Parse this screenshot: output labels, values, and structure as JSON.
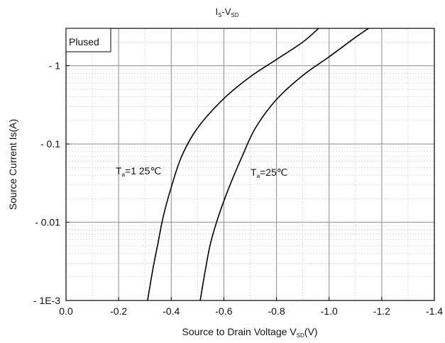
{
  "chart_data": {
    "type": "line",
    "title": {
      "main": "I",
      "sub1": "S",
      "mid": "-V",
      "sub2": "SD"
    },
    "xlabel": {
      "main": "Source to Drain Voltage V",
      "sub": "SD",
      "tail": "(V)"
    },
    "ylabel": "Source Current Is(A)",
    "x_ticks": [
      "0.0",
      "-0.2",
      "-0.4",
      "-0.6",
      "-0.8",
      "-1.0",
      "-1.2",
      "-1.4"
    ],
    "y_ticks": [
      "- 1E-3",
      "- 0.01",
      "- 0.1",
      "- 1"
    ],
    "xlim": [
      0,
      -1.4
    ],
    "ylim": [
      0.001,
      3
    ],
    "y_scale": "log",
    "grid": true,
    "annotation_box": "Plused",
    "series": [
      {
        "label": {
          "main": "T",
          "sub": "a",
          "tail": "=1 25℃"
        },
        "x": [
          -0.31,
          -0.33,
          -0.35,
          -0.37,
          -0.4,
          -0.44,
          -0.5,
          -0.6,
          -0.7,
          -0.8,
          -0.9,
          -0.96
        ],
        "y": [
          0.001,
          0.0025,
          0.0055,
          0.012,
          0.028,
          0.07,
          0.16,
          0.38,
          0.72,
          1.2,
          2.0,
          3.0
        ]
      },
      {
        "label": {
          "main": "T",
          "sub": "a",
          "tail": "=25℃"
        },
        "x": [
          -0.51,
          -0.53,
          -0.55,
          -0.58,
          -0.62,
          -0.67,
          -0.72,
          -0.8,
          -0.9,
          -1.0,
          -1.1,
          -1.15
        ],
        "y": [
          0.001,
          0.0025,
          0.0055,
          0.012,
          0.028,
          0.07,
          0.16,
          0.37,
          0.75,
          1.3,
          2.3,
          3.0
        ]
      }
    ]
  }
}
